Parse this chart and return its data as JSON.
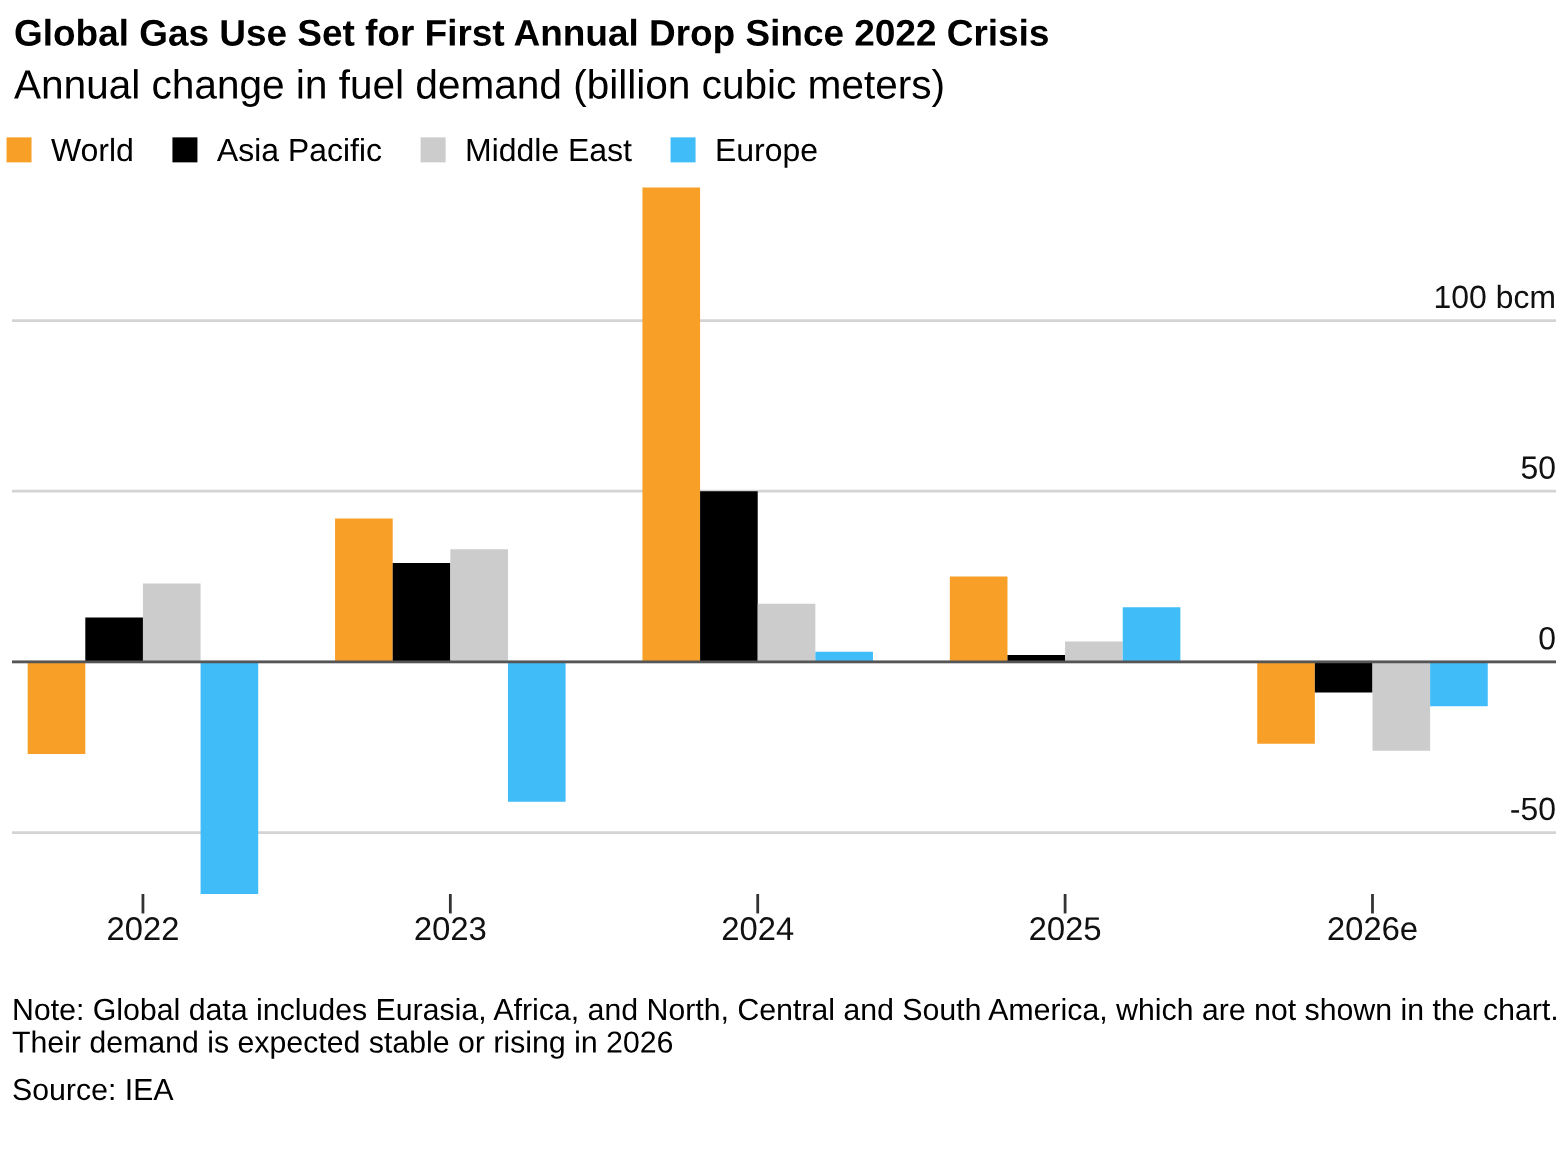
{
  "chart_data": {
    "type": "bar",
    "title": "Global Gas Use Set for First Annual Drop Since 2022 Crisis",
    "subtitle": "Annual change in fuel demand (billion cubic meters)",
    "categories": [
      "2022",
      "2023",
      "2024",
      "2025",
      "2026e"
    ],
    "series": [
      {
        "name": "World",
        "color": "#f89f27",
        "values": [
          -27,
          42,
          139,
          25,
          -24
        ]
      },
      {
        "name": "Asia Pacific",
        "color": "#000000",
        "values": [
          13,
          29,
          50,
          2,
          -9
        ]
      },
      {
        "name": "Middle East",
        "color": "#cccccc",
        "values": [
          23,
          33,
          17,
          6,
          -26
        ]
      },
      {
        "name": "Europe",
        "color": "#40bdf9",
        "values": [
          -68,
          -41,
          3,
          16,
          -13
        ]
      }
    ],
    "ylim": [
      -68,
      140
    ],
    "yticks": [
      -50,
      0,
      50,
      {
        "value": 100,
        "label": "100 bcm"
      }
    ],
    "grid": "y",
    "legend": "top left",
    "ref_lines": [
      {
        "axis": "y",
        "value": 0,
        "color": "#555555"
      }
    ],
    "annotations": [
      "Note: Global data includes Eurasia, Africa, and North, Central and South America, which are not shown in the chart. Their demand is expected stable or rising in 2026",
      "Source: IEA"
    ]
  }
}
